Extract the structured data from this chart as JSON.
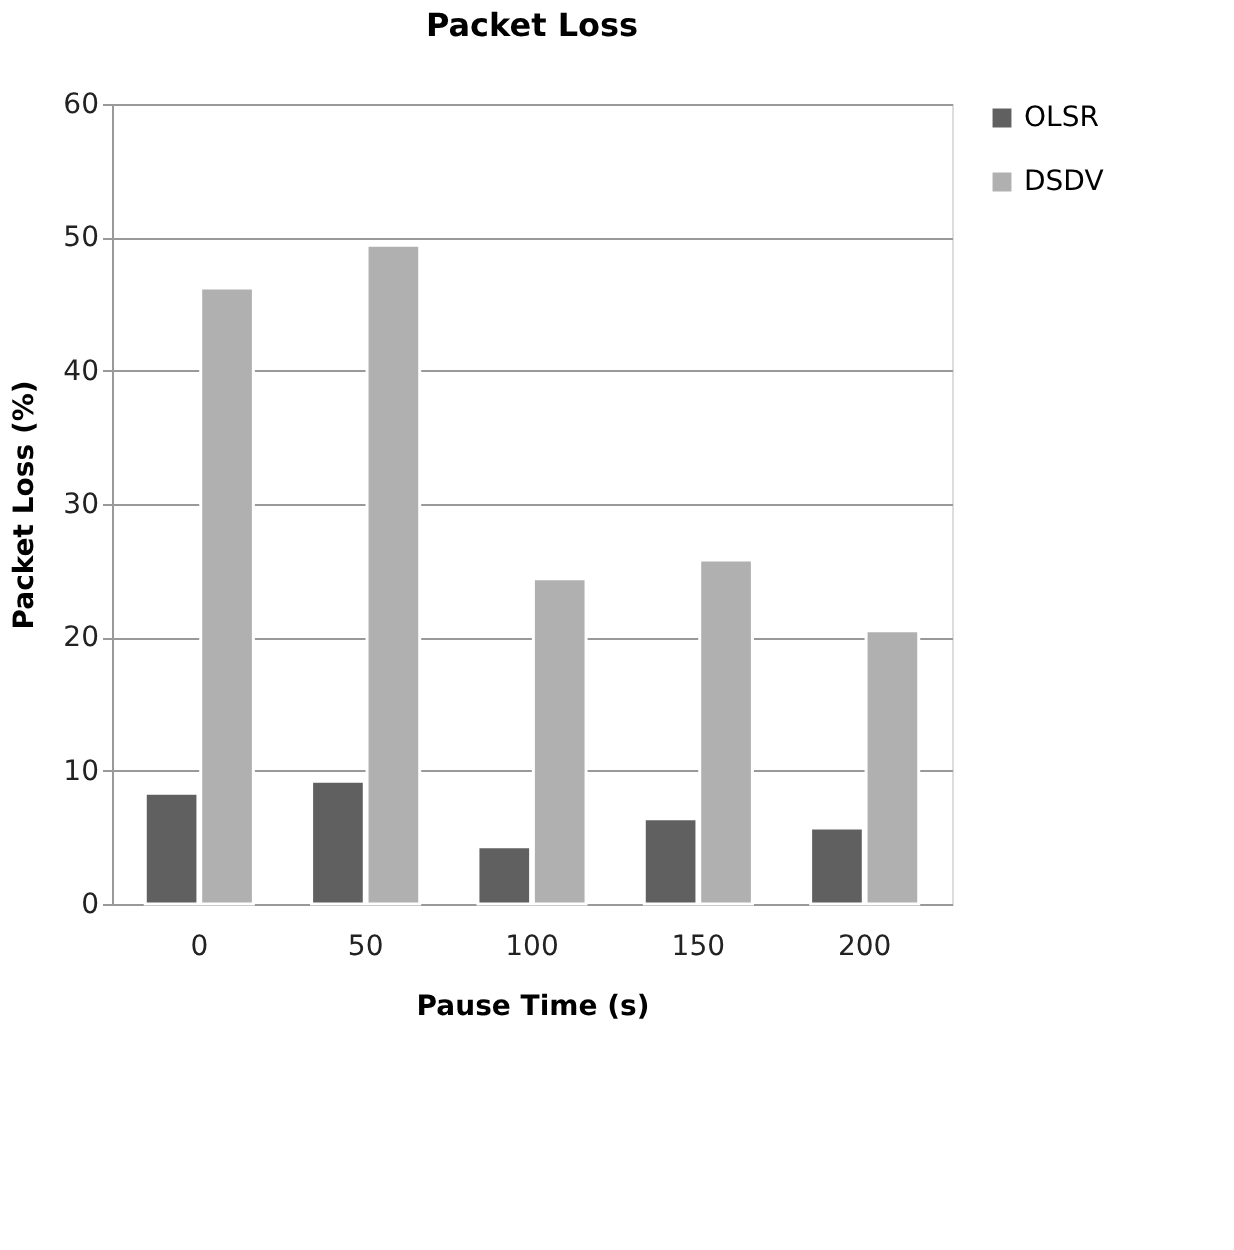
{
  "chart_data": {
    "type": "bar",
    "title": "Packet Loss",
    "xlabel": "Pause Time (s)",
    "ylabel": "Packet Loss (%)",
    "categories": [
      "0",
      "50",
      "100",
      "150",
      "200"
    ],
    "series": [
      {
        "name": "OLSR",
        "color": "#606060",
        "values": [
          8.3,
          9.2,
          4.3,
          6.4,
          5.7
        ]
      },
      {
        "name": "DSDV",
        "color": "#b0b0b0",
        "values": [
          46.2,
          49.4,
          24.4,
          25.8,
          20.5
        ]
      }
    ],
    "ylim": [
      0,
      60
    ],
    "yticks": [
      0,
      10,
      20,
      30,
      40,
      50,
      60
    ],
    "grid": "y",
    "legend": "right"
  }
}
